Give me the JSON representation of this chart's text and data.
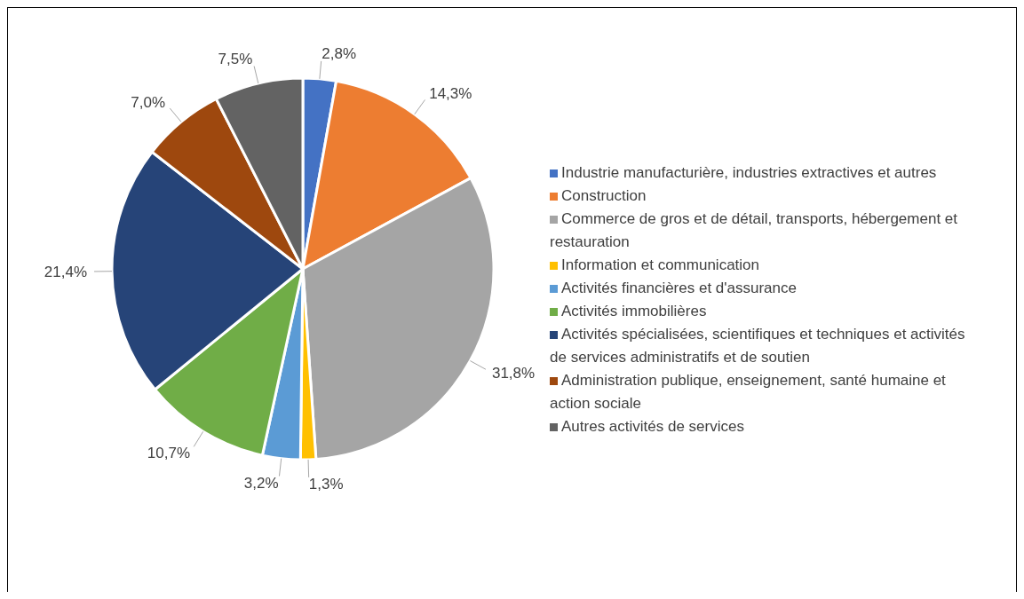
{
  "chart_data": {
    "type": "pie",
    "categories": [
      "Industrie manufacturière, industries extractives et autres",
      "Construction",
      "Commerce de gros et de détail, transports, hébergement et restauration",
      "Information et communication",
      "Activités financières et d'assurance",
      "Activités immobilières",
      "Activités spécialisées, scientifiques et techniques et activités de services administratifs et de soutien",
      "Administration publique, enseignement, santé humaine et action sociale",
      "Autres activités de services"
    ],
    "values": [
      2.8,
      14.3,
      31.8,
      1.3,
      3.2,
      10.7,
      21.4,
      7.0,
      7.5
    ],
    "value_labels": [
      "2,8%",
      "14,3%",
      "31,8%",
      "1,3%",
      "3,2%",
      "10,7%",
      "21,4%",
      "7,0%",
      "7,5%"
    ],
    "colors": [
      "#4472c4",
      "#ed7d31",
      "#a5a5a5",
      "#ffc000",
      "#5b9bd5",
      "#70ad47",
      "#264478",
      "#9e480e",
      "#636363"
    ],
    "legend": "right"
  }
}
